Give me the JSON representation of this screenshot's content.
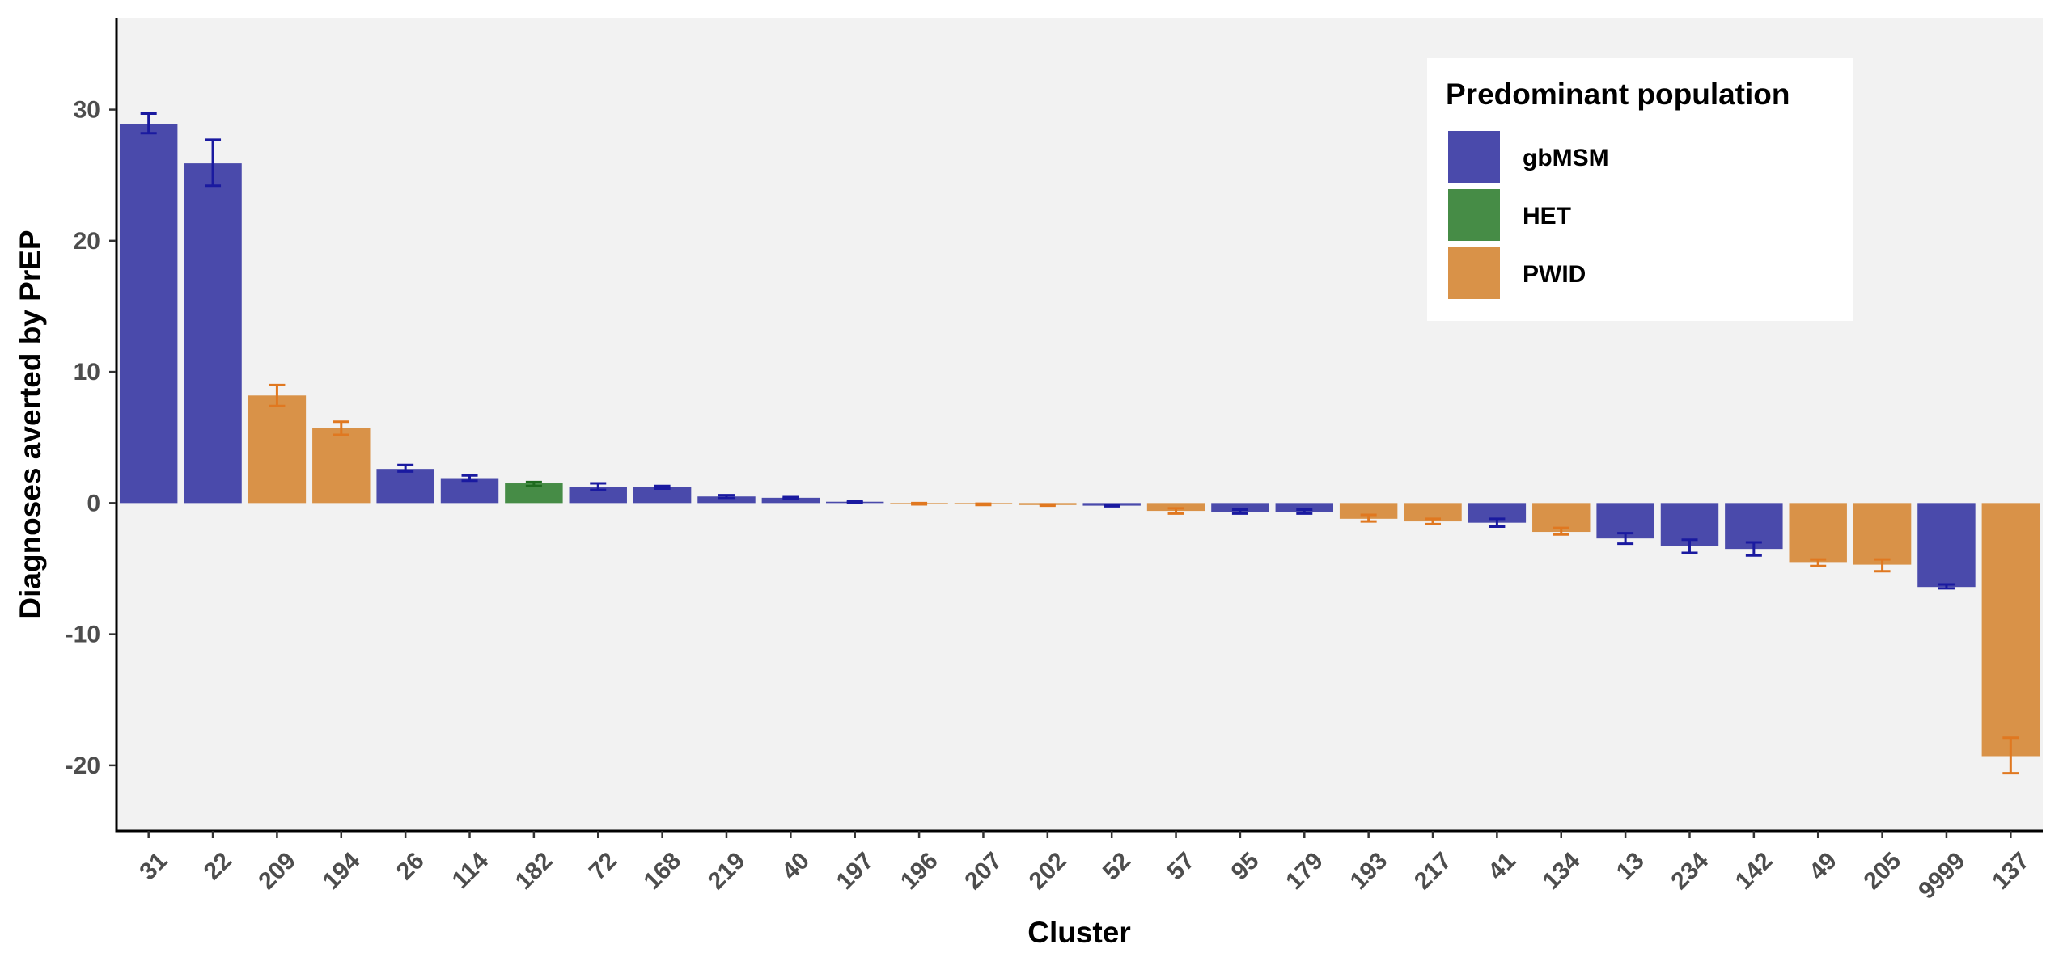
{
  "chart_data": {
    "type": "bar",
    "xlabel": "Cluster",
    "ylabel": "Diagnoses averted by PrEP",
    "ylim": [
      -25,
      37
    ],
    "yticks": [
      -20,
      -10,
      0,
      10,
      20,
      30
    ],
    "ytick_labels": [
      "-20",
      "-10",
      "0",
      "10",
      "20",
      "30"
    ],
    "grid": false,
    "legend_position": "top-right",
    "legend": {
      "title": "Predominant population",
      "entries": [
        {
          "group": "gbMSM",
          "label": "gbMSM",
          "color": "#4a4aab"
        },
        {
          "group": "HET",
          "label": "HET",
          "color": "#468c46"
        },
        {
          "group": "PWID",
          "label": "PWID",
          "color": "#d99248"
        }
      ]
    },
    "colors": {
      "panel_background": "#f2f2f2",
      "gbMSM_bar": "#4a4aab",
      "HET_bar": "#468c46",
      "PWID_bar": "#d99248",
      "gbMSM_errorbar": "#1a1aa0",
      "HET_errorbar": "#1e6b1e",
      "PWID_errorbar": "#e07820"
    },
    "categories": [
      "31",
      "22",
      "209",
      "194",
      "26",
      "114",
      "182",
      "72",
      "168",
      "219",
      "40",
      "197",
      "196",
      "207",
      "202",
      "52",
      "57",
      "95",
      "179",
      "193",
      "217",
      "41",
      "134",
      "13",
      "234",
      "142",
      "49",
      "205",
      "9999",
      "137"
    ],
    "groups": [
      "gbMSM",
      "gbMSM",
      "PWID",
      "PWID",
      "gbMSM",
      "gbMSM",
      "HET",
      "gbMSM",
      "gbMSM",
      "gbMSM",
      "gbMSM",
      "gbMSM",
      "PWID",
      "PWID",
      "PWID",
      "gbMSM",
      "PWID",
      "gbMSM",
      "gbMSM",
      "PWID",
      "PWID",
      "gbMSM",
      "PWID",
      "gbMSM",
      "gbMSM",
      "gbMSM",
      "PWID",
      "PWID",
      "gbMSM",
      "PWID"
    ],
    "values": [
      28.9,
      25.9,
      8.2,
      5.7,
      2.6,
      1.9,
      1.5,
      1.2,
      1.2,
      0.5,
      0.4,
      0.1,
      -0.05,
      -0.1,
      -0.15,
      -0.2,
      -0.6,
      -0.7,
      -0.7,
      -1.2,
      -1.4,
      -1.5,
      -2.2,
      -2.7,
      -3.3,
      -3.5,
      -4.5,
      -4.7,
      -6.4,
      -19.3
    ],
    "error_low": [
      28.2,
      24.2,
      7.4,
      5.2,
      2.4,
      1.7,
      1.3,
      1.0,
      1.1,
      0.4,
      0.35,
      0.05,
      -0.1,
      -0.15,
      -0.2,
      -0.25,
      -0.8,
      -0.8,
      -0.8,
      -1.4,
      -1.6,
      -1.8,
      -2.4,
      -3.1,
      -3.8,
      -4.0,
      -4.8,
      -5.2,
      -6.5,
      -20.6
    ],
    "error_high": [
      29.7,
      27.7,
      9.0,
      6.2,
      2.9,
      2.1,
      1.6,
      1.5,
      1.3,
      0.6,
      0.45,
      0.15,
      0.0,
      -0.05,
      -0.1,
      -0.15,
      -0.4,
      -0.5,
      -0.5,
      -0.9,
      -1.2,
      -1.2,
      -1.9,
      -2.3,
      -2.8,
      -3.0,
      -4.3,
      -4.3,
      -6.2,
      -17.9
    ]
  }
}
